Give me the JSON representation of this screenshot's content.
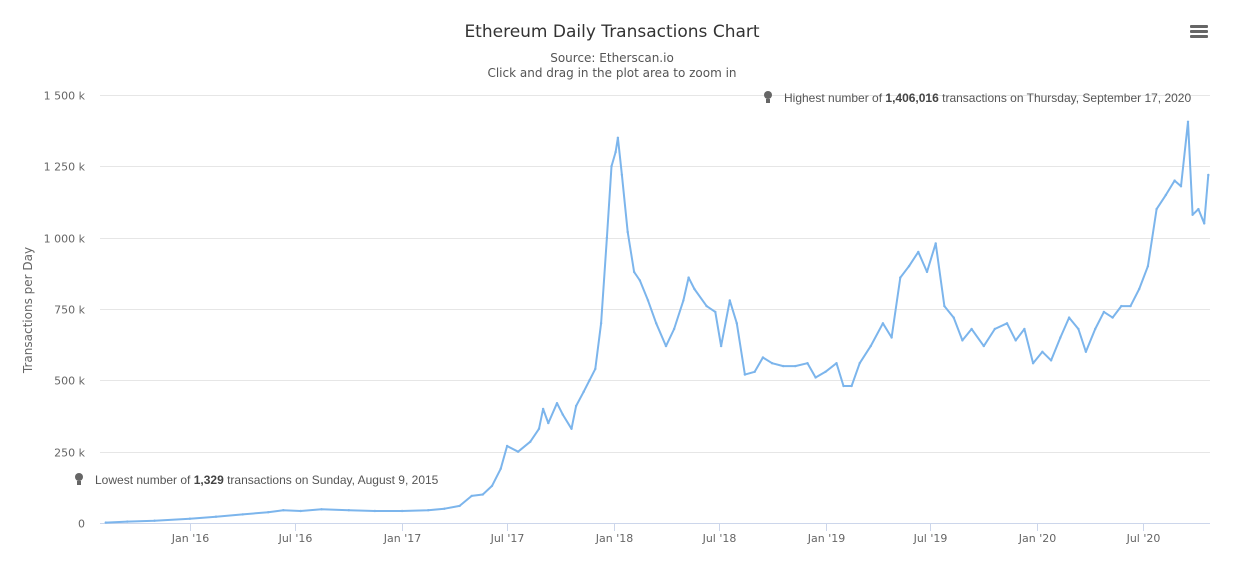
{
  "chart_data": {
    "type": "line",
    "title": "Ethereum Daily Transactions Chart",
    "subtitle": "Source: Etherscan.io",
    "hint": "Click and drag in the plot area to zoom in",
    "ylabel": "Transactions per Day",
    "xlabel": "",
    "ylim": [
      0,
      1500000
    ],
    "xlim": [
      "2015-07-30",
      "2020-10-25"
    ],
    "y_ticks": [
      {
        "value": 0,
        "label": "0"
      },
      {
        "value": 250000,
        "label": "250 k"
      },
      {
        "value": 500000,
        "label": "500 k"
      },
      {
        "value": 750000,
        "label": "750 k"
      },
      {
        "value": 1000000,
        "label": "1 000 k"
      },
      {
        "value": 1250000,
        "label": "1 250 k"
      },
      {
        "value": 1500000,
        "label": "1 500 k"
      }
    ],
    "x_ticks": [
      {
        "value": "2016-01-01",
        "label": "Jan '16"
      },
      {
        "value": "2016-07-01",
        "label": "Jul '16"
      },
      {
        "value": "2017-01-01",
        "label": "Jan '17"
      },
      {
        "value": "2017-07-01",
        "label": "Jul '17"
      },
      {
        "value": "2018-01-01",
        "label": "Jan '18"
      },
      {
        "value": "2018-07-01",
        "label": "Jul '18"
      },
      {
        "value": "2019-01-01",
        "label": "Jan '19"
      },
      {
        "value": "2019-07-01",
        "label": "Jul '19"
      },
      {
        "value": "2020-01-01",
        "label": "Jan '20"
      },
      {
        "value": "2020-07-01",
        "label": "Jul '20"
      }
    ],
    "grid": true,
    "legend": "none",
    "color": "#7cb5ec",
    "series": [
      {
        "x": [
          "2015-08-09",
          "2015-09-15",
          "2015-11-01",
          "2016-01-01",
          "2016-02-15",
          "2016-04-01",
          "2016-05-15",
          "2016-06-10",
          "2016-07-10",
          "2016-08-15",
          "2016-10-01",
          "2016-11-15",
          "2017-01-01",
          "2017-02-15",
          "2017-03-15",
          "2017-04-10",
          "2017-05-01",
          "2017-05-20",
          "2017-06-05",
          "2017-06-20",
          "2017-07-01",
          "2017-07-20",
          "2017-08-10",
          "2017-08-25",
          "2017-09-01",
          "2017-09-10",
          "2017-09-25",
          "2017-10-05",
          "2017-10-20",
          "2017-10-28",
          "2017-11-10",
          "2017-11-20",
          "2017-11-30",
          "2017-12-10",
          "2017-12-20",
          "2017-12-28",
          "2018-01-04",
          "2018-01-08",
          "2018-01-15",
          "2018-01-25",
          "2018-02-05",
          "2018-02-15",
          "2018-03-01",
          "2018-03-15",
          "2018-04-01",
          "2018-04-15",
          "2018-05-01",
          "2018-05-10",
          "2018-05-20",
          "2018-06-10",
          "2018-06-25",
          "2018-07-05",
          "2018-07-20",
          "2018-08-01",
          "2018-08-15",
          "2018-09-01",
          "2018-09-15",
          "2018-10-01",
          "2018-10-20",
          "2018-11-10",
          "2018-12-01",
          "2018-12-15",
          "2019-01-01",
          "2019-01-20",
          "2019-02-01",
          "2019-02-15",
          "2019-03-01",
          "2019-03-20",
          "2019-04-10",
          "2019-04-25",
          "2019-05-10",
          "2019-05-25",
          "2019-06-10",
          "2019-06-25",
          "2019-07-10",
          "2019-07-25",
          "2019-08-10",
          "2019-08-25",
          "2019-09-10",
          "2019-10-01",
          "2019-10-20",
          "2019-11-10",
          "2019-11-25",
          "2019-12-10",
          "2019-12-25",
          "2020-01-10",
          "2020-01-25",
          "2020-02-10",
          "2020-02-25",
          "2020-03-12",
          "2020-03-25",
          "2020-04-10",
          "2020-04-25",
          "2020-05-10",
          "2020-05-25",
          "2020-06-10",
          "2020-06-25",
          "2020-07-10",
          "2020-07-25",
          "2020-08-10",
          "2020-08-25",
          "2020-09-05",
          "2020-09-17",
          "2020-09-25",
          "2020-10-05",
          "2020-10-15",
          "2020-10-22"
        ],
        "values": [
          1329,
          5000,
          8000,
          15000,
          22000,
          30000,
          38000,
          45000,
          42000,
          48000,
          45000,
          42000,
          42000,
          45000,
          50000,
          60000,
          95000,
          100000,
          130000,
          190000,
          270000,
          250000,
          285000,
          330000,
          400000,
          350000,
          420000,
          380000,
          330000,
          410000,
          460000,
          500000,
          540000,
          700000,
          1000000,
          1250000,
          1300000,
          1350000,
          1220000,
          1020000,
          880000,
          850000,
          780000,
          700000,
          620000,
          680000,
          780000,
          860000,
          820000,
          760000,
          740000,
          620000,
          780000,
          700000,
          520000,
          530000,
          580000,
          560000,
          550000,
          550000,
          560000,
          510000,
          530000,
          560000,
          480000,
          480000,
          560000,
          620000,
          700000,
          650000,
          860000,
          900000,
          950000,
          880000,
          980000,
          760000,
          720000,
          640000,
          680000,
          620000,
          680000,
          700000,
          640000,
          680000,
          560000,
          600000,
          570000,
          650000,
          720000,
          680000,
          600000,
          680000,
          740000,
          720000,
          760000,
          760000,
          820000,
          900000,
          1100000,
          1150000,
          1200000,
          1180000,
          1406016,
          1080000,
          1100000,
          1050000,
          1220000
        ]
      }
    ],
    "annotations": {
      "max": {
        "prefix": "Highest number of ",
        "value": "1,406,016",
        "suffix": " transactions on Thursday, September 17, 2020"
      },
      "min": {
        "prefix": "Lowest number of ",
        "value": "1,329",
        "suffix": " transactions on Sunday, August 9, 2015"
      }
    }
  },
  "toolbar": {
    "menu_icon": "hamburger-menu-icon"
  }
}
